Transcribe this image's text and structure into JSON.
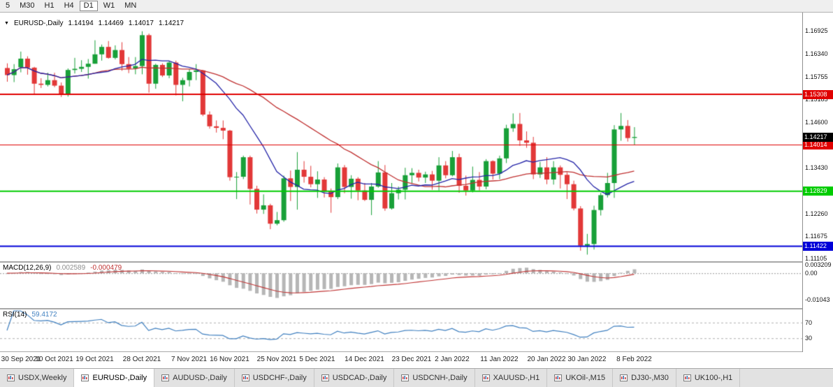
{
  "toolbar": {
    "timeframes": [
      "5",
      "M30",
      "H1",
      "H4",
      "D1",
      "W1",
      "MN"
    ],
    "active": "D1"
  },
  "chart": {
    "symbol_label": "EURUSD-,Daily",
    "ohlc": {
      "open": "1.14194",
      "high": "1.14469",
      "low": "1.14017",
      "close": "1.14217"
    },
    "price_axis_labels": [
      "1.16925",
      "1.16340",
      "1.15755",
      "1.15185",
      "1.14600",
      "1.13430",
      "1.12845",
      "1.12260",
      "1.11675",
      "1.11105"
    ],
    "hlines": [
      {
        "value": 1.15308,
        "label": "1.15308",
        "color": "#e00000",
        "width": 2
      },
      {
        "value": 1.14014,
        "label": "1.14014",
        "color": "#e00000",
        "width": 1
      },
      {
        "value": 1.12829,
        "label": "1.12829",
        "color": "#00cc00",
        "width": 2
      },
      {
        "value": 1.11422,
        "label": "1.11422",
        "color": "#0000d8",
        "width": 2
      }
    ],
    "current_price": {
      "value": 1.14217,
      "label": "1.14217",
      "color": "#000000"
    },
    "date_labels": [
      "30 Sep 2021",
      "10 Oct 2021",
      "19 Oct 2021",
      "28 Oct 2021",
      "7 Nov 2021",
      "16 Nov 2021",
      "25 Nov 2021",
      "5 Dec 2021",
      "14 Dec 2021",
      "23 Dec 2021",
      "2 Jan 2022",
      "11 Jan 2022",
      "20 Jan 2022",
      "30 Jan 2022",
      "8 Feb 2022"
    ],
    "up_color": "#18a038",
    "down_color": "#e23838",
    "ma_fast_color": "#2424a8",
    "ma_slow_color": "#c03030"
  },
  "macd": {
    "label": "MACD(12,26,9)",
    "value_main": "0.002589",
    "value_signal": "-0.000479",
    "axis_labels": [
      {
        "value": 0.003209,
        "text": "0.003209"
      },
      {
        "value": 0,
        "text": "0.00"
      },
      {
        "value": -0.01043,
        "text": "-0.01043"
      }
    ],
    "hist_color": "#b6b6b6",
    "signal_color": "#c03535"
  },
  "rsi": {
    "label": "RSI(14)",
    "value": "59.4172",
    "levels": [
      {
        "value": 70,
        "text": "70"
      },
      {
        "value": 30,
        "text": "30"
      }
    ],
    "line_color": "#4080c0"
  },
  "tabs": {
    "items": [
      "USDX,Weekly",
      "EURUSD-,Daily",
      "AUDUSD-,Daily",
      "USDCHF-,Daily",
      "USDCAD-,Daily",
      "USDCNH-,Daily",
      "XAUUSD-,H1",
      "UKOil-,M15",
      "DJ30-,M30",
      "UK100-,H1"
    ],
    "active": "EURUSD-,Daily"
  },
  "chart_data": {
    "type": "candlestick",
    "symbol": "EURUSD",
    "timeframe": "Daily",
    "ma_fast_period": 12,
    "ma_slow_period": 30,
    "macd_params": [
      12,
      26,
      9
    ],
    "rsi_period": 14,
    "price_scale_top": 1.1738,
    "price_scale_bottom": 1.1104,
    "macd_scale_max": 0.0036,
    "macd_scale_min": -0.0131,
    "candles": [
      [
        1.1598,
        1.161,
        1.1563,
        1.158
      ],
      [
        1.158,
        1.1608,
        1.1562,
        1.1595
      ],
      [
        1.16,
        1.164,
        1.1587,
        1.1622
      ],
      [
        1.1622,
        1.1628,
        1.1581,
        1.1599
      ],
      [
        1.1599,
        1.1601,
        1.1529,
        1.1558
      ],
      [
        1.1558,
        1.1572,
        1.1547,
        1.1555
      ],
      [
        1.1555,
        1.1586,
        1.1551,
        1.1567
      ],
      [
        1.1567,
        1.1586,
        1.1549,
        1.1553
      ],
      [
        1.1553,
        1.1561,
        1.1524,
        1.1529
      ],
      [
        1.1529,
        1.1597,
        1.1525,
        1.1593
      ],
      [
        1.1593,
        1.1624,
        1.1584,
        1.1596
      ],
      [
        1.1596,
        1.1618,
        1.1588,
        1.1601
      ],
      [
        1.1601,
        1.1621,
        1.1571,
        1.1609
      ],
      [
        1.1609,
        1.1669,
        1.1609,
        1.1633
      ],
      [
        1.1633,
        1.1658,
        1.1617,
        1.1652
      ],
      [
        1.1652,
        1.1667,
        1.1622,
        1.1624
      ],
      [
        1.1624,
        1.1656,
        1.162,
        1.1644
      ],
      [
        1.1644,
        1.1664,
        1.1591,
        1.1608
      ],
      [
        1.1608,
        1.1626,
        1.1585,
        1.1597
      ],
      [
        1.1597,
        1.1626,
        1.1582,
        1.1603
      ],
      [
        1.1603,
        1.1692,
        1.1582,
        1.1682
      ],
      [
        1.1682,
        1.1686,
        1.1535,
        1.1558
      ],
      [
        1.1558,
        1.1609,
        1.1545,
        1.1606
      ],
      [
        1.1606,
        1.161,
        1.1575,
        1.1579
      ],
      [
        1.1579,
        1.1616,
        1.1572,
        1.1612
      ],
      [
        1.1612,
        1.1617,
        1.1528,
        1.1555
      ],
      [
        1.1555,
        1.1573,
        1.1513,
        1.1567
      ],
      [
        1.1567,
        1.1595,
        1.1551,
        1.1588
      ],
      [
        1.1588,
        1.1608,
        1.1567,
        1.1592
      ],
      [
        1.1592,
        1.1593,
        1.1475,
        1.1479
      ],
      [
        1.1479,
        1.1487,
        1.1443,
        1.1449
      ],
      [
        1.1449,
        1.1464,
        1.1433,
        1.1445
      ],
      [
        1.1445,
        1.1464,
        1.1416,
        1.1438
      ],
      [
        1.1438,
        1.144,
        1.131,
        1.1319
      ],
      [
        1.1319,
        1.1332,
        1.1263,
        1.132
      ],
      [
        1.132,
        1.1374,
        1.1314,
        1.137
      ],
      [
        1.137,
        1.1374,
        1.1249,
        1.1289
      ],
      [
        1.1289,
        1.1297,
        1.1226,
        1.1236
      ],
      [
        1.1236,
        1.1275,
        1.1225,
        1.1247
      ],
      [
        1.1247,
        1.1251,
        1.1186,
        1.12
      ],
      [
        1.12,
        1.123,
        1.1196,
        1.1209
      ],
      [
        1.1209,
        1.1323,
        1.1205,
        1.1316
      ],
      [
        1.1316,
        1.1336,
        1.1258,
        1.1294
      ],
      [
        1.1294,
        1.1383,
        1.1236,
        1.1338
      ],
      [
        1.1338,
        1.136,
        1.1305,
        1.132
      ],
      [
        1.132,
        1.1348,
        1.1293,
        1.1301
      ],
      [
        1.1301,
        1.1334,
        1.1266,
        1.1313
      ],
      [
        1.1313,
        1.1319,
        1.1267,
        1.1284
      ],
      [
        1.1284,
        1.129,
        1.1228,
        1.1268
      ],
      [
        1.1268,
        1.1354,
        1.1263,
        1.1344
      ],
      [
        1.1344,
        1.135,
        1.1278,
        1.1294
      ],
      [
        1.1294,
        1.1324,
        1.1264,
        1.1315
      ],
      [
        1.1315,
        1.1319,
        1.126,
        1.1285
      ],
      [
        1.1285,
        1.1304,
        1.1258,
        1.1261
      ],
      [
        1.1261,
        1.1304,
        1.1222,
        1.1295
      ],
      [
        1.1295,
        1.136,
        1.1292,
        1.1331
      ],
      [
        1.1331,
        1.135,
        1.1233,
        1.1239
      ],
      [
        1.1239,
        1.1304,
        1.1236,
        1.1278
      ],
      [
        1.1278,
        1.1295,
        1.1262,
        1.1287
      ],
      [
        1.1287,
        1.1343,
        1.1262,
        1.1324
      ],
      [
        1.1324,
        1.1342,
        1.1303,
        1.133
      ],
      [
        1.133,
        1.1338,
        1.1308,
        1.1318
      ],
      [
        1.1318,
        1.1333,
        1.1304,
        1.1326
      ],
      [
        1.1326,
        1.1335,
        1.1287,
        1.131
      ],
      [
        1.131,
        1.137,
        1.1285,
        1.1349
      ],
      [
        1.1349,
        1.136,
        1.1316,
        1.1324
      ],
      [
        1.1324,
        1.1386,
        1.1321,
        1.137
      ],
      [
        1.137,
        1.1379,
        1.1279,
        1.1297
      ],
      [
        1.1297,
        1.1323,
        1.1272,
        1.1285
      ],
      [
        1.1285,
        1.1346,
        1.128,
        1.1312
      ],
      [
        1.1312,
        1.1332,
        1.1285,
        1.1295
      ],
      [
        1.1295,
        1.1365,
        1.1288,
        1.136
      ],
      [
        1.136,
        1.1362,
        1.1313,
        1.1328
      ],
      [
        1.1328,
        1.1374,
        1.1314,
        1.1367
      ],
      [
        1.1367,
        1.1453,
        1.1355,
        1.1444
      ],
      [
        1.1444,
        1.1482,
        1.1435,
        1.1455
      ],
      [
        1.1455,
        1.1483,
        1.1399,
        1.1413
      ],
      [
        1.1413,
        1.1436,
        1.1394,
        1.1407
      ],
      [
        1.1407,
        1.1422,
        1.1314,
        1.1326
      ],
      [
        1.1326,
        1.1358,
        1.1317,
        1.1344
      ],
      [
        1.1344,
        1.137,
        1.1301,
        1.1313
      ],
      [
        1.1313,
        1.136,
        1.13,
        1.1344
      ],
      [
        1.1344,
        1.1349,
        1.129,
        1.1325
      ],
      [
        1.1325,
        1.1331,
        1.1263,
        1.1301
      ],
      [
        1.1301,
        1.131,
        1.1234,
        1.1239
      ],
      [
        1.1239,
        1.1245,
        1.1131,
        1.1144
      ],
      [
        1.1144,
        1.1174,
        1.1121,
        1.1148
      ],
      [
        1.1148,
        1.1246,
        1.1134,
        1.1235
      ],
      [
        1.1235,
        1.1279,
        1.1221,
        1.1273
      ],
      [
        1.1273,
        1.133,
        1.1267,
        1.1304
      ],
      [
        1.1304,
        1.1452,
        1.1266,
        1.1441
      ],
      [
        1.1441,
        1.1483,
        1.1412,
        1.145
      ],
      [
        1.145,
        1.1465,
        1.141,
        1.1419
      ],
      [
        1.14194,
        1.14469,
        1.14017,
        1.14217
      ]
    ]
  }
}
